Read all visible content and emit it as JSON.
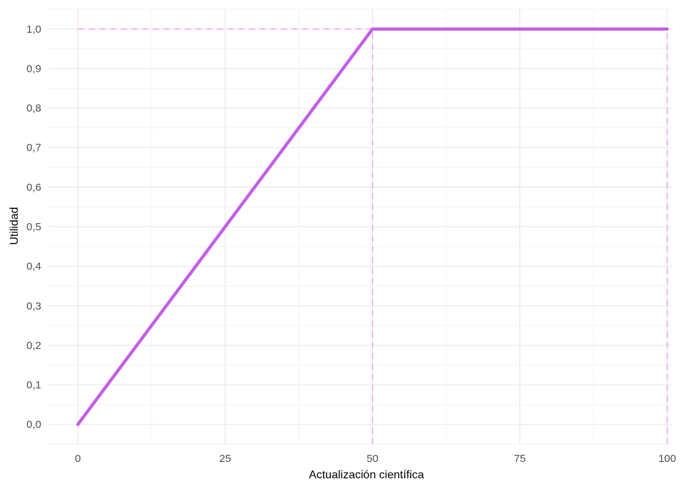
{
  "chart_data": {
    "type": "line",
    "title": "",
    "xlabel": "Actualización científica",
    "ylabel": "Utilidad",
    "xlim": [
      -5,
      101
    ],
    "ylim": [
      -0.05,
      1.05
    ],
    "x_ticks": [
      0,
      25,
      50,
      75,
      100
    ],
    "x_tick_labels": [
      "0",
      "25",
      "50",
      "75",
      "100"
    ],
    "y_ticks": [
      0.0,
      0.1,
      0.2,
      0.3,
      0.4,
      0.5,
      0.6,
      0.7,
      0.8,
      0.9,
      1.0
    ],
    "y_tick_labels": [
      "0,0",
      "0,1",
      "0,2",
      "0,3",
      "0,4",
      "0,5",
      "0,6",
      "0,7",
      "0,8",
      "0,9",
      "1,0"
    ],
    "grid": true,
    "legend": "none",
    "series": [
      {
        "x": [
          0,
          49.5,
          50,
          100
        ],
        "y": [
          0.0,
          0.99,
          1.0,
          1.0
        ],
        "color": "#c35ee8",
        "style": "solid"
      }
    ],
    "reference_lines": [
      {
        "orientation": "horizontal",
        "y": 1.0,
        "x_from": 0,
        "x_to": 100,
        "color": "#f0a6f0",
        "style": "dashed"
      },
      {
        "orientation": "vertical",
        "x": 50,
        "y_from": -0.05,
        "y_to": 1.0,
        "color": "#f0a6f0",
        "style": "dashed"
      },
      {
        "orientation": "vertical",
        "x": 100,
        "y_from": -0.05,
        "y_to": 1.0,
        "color": "#f0a6f0",
        "style": "dashed"
      }
    ]
  }
}
